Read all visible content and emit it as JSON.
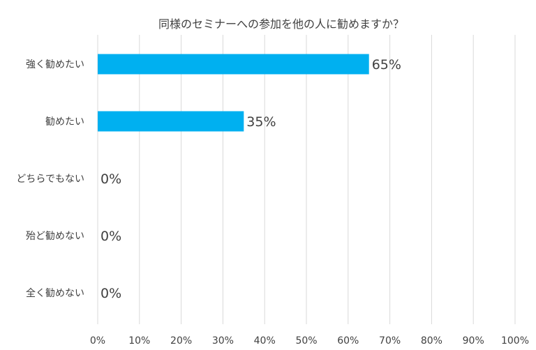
{
  "chart_data": {
    "type": "bar",
    "orientation": "horizontal",
    "title": "同様のセミナーへの参加を他の人に勧めますか？",
    "categories": [
      "強く勧めたい",
      "勧めたい",
      "どちらでもない",
      "殆ど勧めない",
      "全く勧めない"
    ],
    "values": [
      65,
      35,
      0,
      0,
      0
    ],
    "data_labels": [
      "65%",
      "35%",
      "0%",
      "0%",
      "0%"
    ],
    "xlim": [
      0,
      100
    ],
    "x_ticks": [
      "0%",
      "10%",
      "20%",
      "30%",
      "40%",
      "50%",
      "60%",
      "70%",
      "80%",
      "90%",
      "100%"
    ],
    "grid": true,
    "legend": "none",
    "colors": {
      "bar": "#00b0f0",
      "grid": "#d9d9d9",
      "text": "#404040"
    }
  }
}
